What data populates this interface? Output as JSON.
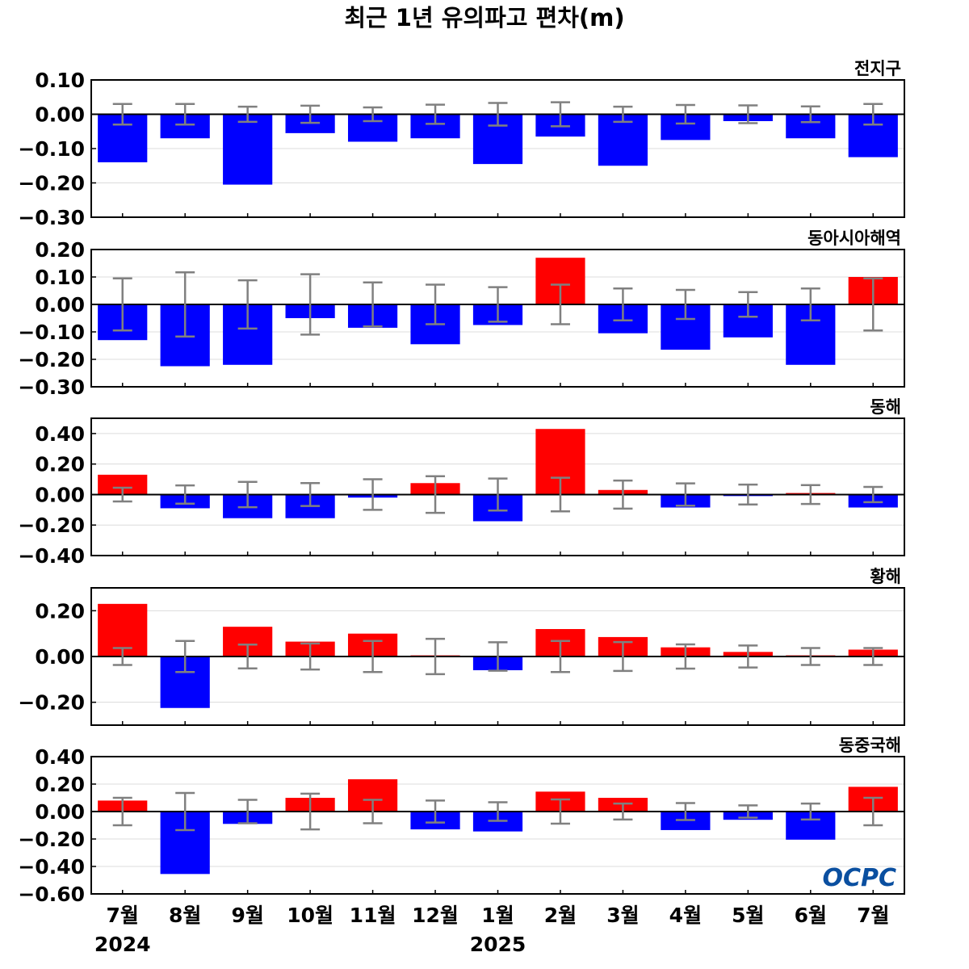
{
  "chart_data": {
    "type": "bar",
    "title": "최근 1년 유의파고 편차(m)",
    "categories": [
      "7월",
      "8월",
      "9월",
      "10월",
      "11월",
      "12월",
      "1월",
      "2월",
      "3월",
      "4월",
      "5월",
      "6월",
      "7월"
    ],
    "year_labels": [
      {
        "text": "2024",
        "index": 0
      },
      {
        "text": "2025",
        "index": 6
      }
    ],
    "colors": {
      "positive": "#ff0000",
      "negative": "#0000ff",
      "error_bar": "#808080"
    },
    "logo_text": "OCPC",
    "panels": [
      {
        "name": "전지구",
        "ylim": [
          -0.3,
          0.1
        ],
        "ticks": [
          0.1,
          0.0,
          -0.1,
          -0.2,
          -0.3
        ],
        "tick_labels": [
          "0.10",
          "0.00",
          "−0.10",
          "−0.20",
          "−0.30"
        ],
        "values": [
          -0.14,
          -0.07,
          -0.205,
          -0.055,
          -0.08,
          -0.07,
          -0.145,
          -0.065,
          -0.15,
          -0.075,
          -0.02,
          -0.07,
          -0.125
        ],
        "error": [
          0.03,
          0.03,
          0.022,
          0.025,
          0.02,
          0.028,
          0.033,
          0.035,
          0.022,
          0.027,
          0.026,
          0.023,
          0.03
        ]
      },
      {
        "name": "동아시아해역",
        "ylim": [
          -0.3,
          0.2
        ],
        "ticks": [
          0.2,
          0.1,
          0.0,
          -0.1,
          -0.2,
          -0.3
        ],
        "tick_labels": [
          "0.20",
          "0.10",
          "0.00",
          "−0.10",
          "−0.20",
          "−0.30"
        ],
        "values": [
          -0.13,
          -0.225,
          -0.22,
          -0.05,
          -0.085,
          -0.145,
          -0.075,
          0.17,
          -0.105,
          -0.165,
          -0.12,
          -0.22,
          0.1
        ],
        "error": [
          0.095,
          0.117,
          0.088,
          0.11,
          0.08,
          0.072,
          0.063,
          0.072,
          0.058,
          0.053,
          0.045,
          0.058,
          0.095
        ]
      },
      {
        "name": "동해",
        "ylim": [
          -0.4,
          0.5
        ],
        "ticks": [
          0.4,
          0.2,
          0.0,
          -0.2,
          -0.4
        ],
        "tick_labels": [
          "0.40",
          "0.20",
          "0.00",
          "−0.20",
          "−0.40"
        ],
        "values": [
          0.13,
          -0.09,
          -0.155,
          -0.155,
          -0.02,
          0.075,
          -0.175,
          0.43,
          0.03,
          -0.085,
          -0.01,
          0.01,
          -0.085
        ],
        "error": [
          0.045,
          0.06,
          0.083,
          0.075,
          0.1,
          0.12,
          0.105,
          0.11,
          0.092,
          0.073,
          0.065,
          0.062,
          0.05
        ]
      },
      {
        "name": "황해",
        "ylim": [
          -0.3,
          0.3
        ],
        "ticks": [
          0.2,
          0.0,
          -0.2
        ],
        "tick_labels": [
          "0.20",
          "0.00",
          "−0.20"
        ],
        "values": [
          0.23,
          -0.225,
          0.13,
          0.065,
          0.1,
          0.005,
          -0.06,
          0.12,
          0.085,
          0.04,
          0.02,
          0.005,
          0.03
        ],
        "error": [
          0.037,
          0.068,
          0.052,
          0.057,
          0.068,
          0.077,
          0.062,
          0.068,
          0.063,
          0.053,
          0.048,
          0.037,
          0.037
        ]
      },
      {
        "name": "동중국해",
        "ylim": [
          -0.6,
          0.4
        ],
        "ticks": [
          0.4,
          0.2,
          0.0,
          -0.2,
          -0.4,
          -0.6
        ],
        "tick_labels": [
          "0.40",
          "0.20",
          "0.00",
          "−0.20",
          "−0.40",
          "−0.60"
        ],
        "values": [
          0.08,
          -0.455,
          -0.09,
          0.1,
          0.235,
          -0.13,
          -0.145,
          0.145,
          0.1,
          -0.135,
          -0.06,
          -0.205,
          0.18
        ],
        "error": [
          0.1,
          0.135,
          0.085,
          0.13,
          0.085,
          0.08,
          0.068,
          0.088,
          0.058,
          0.062,
          0.045,
          0.058,
          0.1
        ]
      }
    ]
  }
}
